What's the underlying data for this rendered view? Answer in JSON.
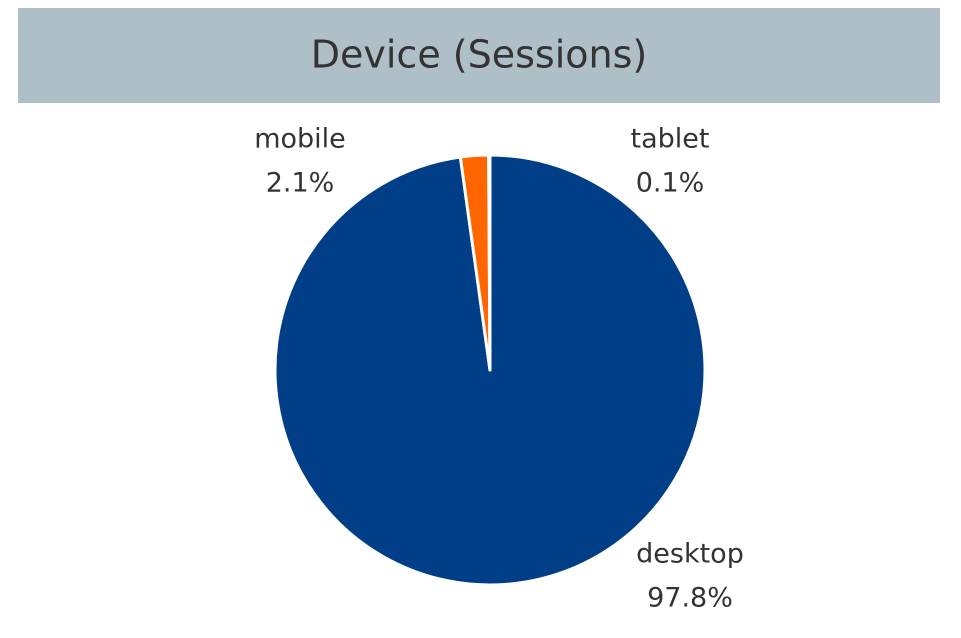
{
  "chart_data": {
    "type": "pie",
    "title": "Device (Sessions)",
    "categories": [
      "desktop",
      "mobile",
      "tablet"
    ],
    "values": [
      97.8,
      2.1,
      0.1
    ],
    "value_labels": [
      "97.8%",
      "2.1%",
      "0.1%"
    ],
    "colors": [
      "#003f87",
      "#ff6600",
      "#bdbdbd"
    ]
  }
}
